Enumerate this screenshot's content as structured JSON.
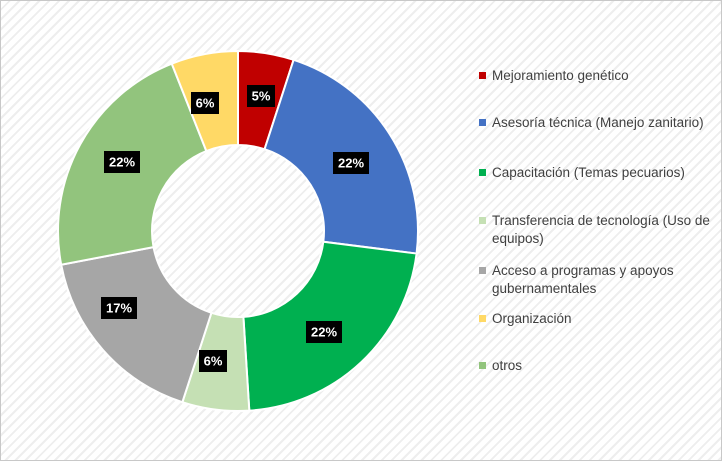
{
  "chart_data": {
    "type": "donut",
    "title": "",
    "legend_position": "right",
    "series": [
      {
        "values": [
          5,
          22,
          22,
          6,
          17,
          22,
          6
        ],
        "data_labels": [
          "5%",
          "22%",
          "22%",
          "6%",
          "17%",
          "22%",
          "6%"
        ]
      }
    ],
    "categories": [
      "Mejoramiento genético",
      "Asesoría técnica (Manejo zanitario)",
      "Capacitación (Temas pecuarios)",
      "Transferencia de tecnología (Uso de equipos)",
      "Acceso a programas y apoyos gubernamentales",
      "Organización",
      "otros"
    ],
    "colors": [
      "#c00000",
      "#4472c4",
      "#00b050",
      "#c5e0b4",
      "#a6a6a6",
      "#92c47d",
      "#ffd966"
    ]
  },
  "legend_order": [
    0,
    1,
    2,
    3,
    4,
    6,
    5
  ],
  "legend_label_order": [
    0,
    1,
    2,
    3,
    4,
    5,
    6
  ]
}
